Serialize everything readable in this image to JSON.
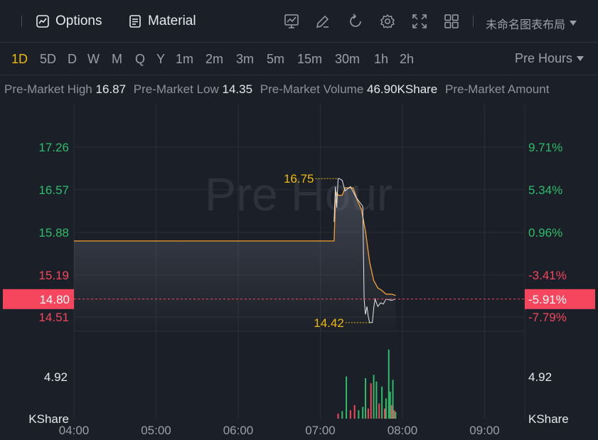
{
  "toolbar": {
    "options_label": "Options",
    "material_label": "Material",
    "layout_name": "未命名图表布局"
  },
  "timeframes": [
    "1D",
    "5D",
    "D",
    "W",
    "M",
    "Q",
    "Y",
    "1m",
    "2m",
    "3m",
    "5m",
    "15m",
    "30m",
    "1h",
    "2h"
  ],
  "active_timeframe": "1D",
  "session_select": "Pre Hours",
  "info": {
    "high_label": "Pre-Market High",
    "high_value": "16.87",
    "low_label": "Pre-Market Low",
    "low_value": "14.35",
    "volume_label": "Pre-Market Volume",
    "volume_value": "46.90KShare",
    "amount_label": "Pre-Market Amount"
  },
  "colors": {
    "accent": "#f0b90b",
    "up": "#2ebd6b",
    "down": "#f6465d",
    "price_line": "#f7a035"
  },
  "chart_data": {
    "type": "line",
    "watermark": "Pre Hour",
    "price_axis_left": [
      "17.26",
      "16.57",
      "15.88",
      "15.19",
      "14.51"
    ],
    "price_axis_right": [
      "9.71%",
      "5.34%",
      "0.96%",
      "-3.41%",
      "-7.79%"
    ],
    "current_price": "14.80",
    "current_change": "-5.91%",
    "max_label": "16.75",
    "min_label": "14.42",
    "volume_axis_left": "4.92",
    "volume_axis_right": "4.92",
    "volume_unit": "KShare",
    "x_ticks": [
      "04:00",
      "05:00",
      "06:00",
      "07:00",
      "08:00",
      "09:00"
    ],
    "ylim": [
      14.28,
      17.96
    ],
    "price_series": [
      [
        "04:00",
        15.74
      ],
      [
        "07:10",
        15.74
      ],
      [
        "07:11",
        16.35
      ],
      [
        "07:12",
        16.52
      ],
      [
        "07:13",
        16.48
      ],
      [
        "07:16",
        16.48
      ],
      [
        "07:18",
        16.6
      ],
      [
        "07:24",
        16.6
      ],
      [
        "07:27",
        16.4
      ],
      [
        "07:30",
        16.25
      ],
      [
        "07:33",
        15.9
      ],
      [
        "07:36",
        15.4
      ],
      [
        "07:39",
        15.1
      ],
      [
        "07:42",
        14.98
      ],
      [
        "07:45",
        14.94
      ],
      [
        "07:48",
        14.88
      ],
      [
        "07:52",
        14.88
      ],
      [
        "07:55",
        14.86
      ]
    ],
    "tick_series": [
      [
        "07:10",
        16.05
      ],
      [
        "07:11",
        16.62
      ],
      [
        "07:12",
        16.28
      ],
      [
        "07:13",
        16.75
      ],
      [
        "07:14",
        16.75
      ],
      [
        "07:16",
        16.72
      ],
      [
        "07:18",
        16.55
      ],
      [
        "07:22",
        16.62
      ],
      [
        "07:26",
        16.45
      ],
      [
        "07:31",
        16.3
      ],
      [
        "07:32",
        14.8
      ],
      [
        "07:33",
        14.55
      ],
      [
        "07:34",
        14.68
      ],
      [
        "07:35",
        14.52
      ],
      [
        "07:36",
        14.42
      ],
      [
        "07:38",
        14.42
      ],
      [
        "07:39",
        14.66
      ],
      [
        "07:40",
        14.8
      ],
      [
        "07:42",
        14.68
      ],
      [
        "07:44",
        14.74
      ],
      [
        "07:46",
        14.72
      ],
      [
        "07:48",
        14.8
      ],
      [
        "07:52",
        14.78
      ],
      [
        "07:55",
        14.8
      ]
    ],
    "volume_bars": [
      {
        "t": "07:13",
        "v": 0.3,
        "dir": "down"
      },
      {
        "t": "07:16",
        "v": 0.45,
        "dir": "up"
      },
      {
        "t": "07:19",
        "v": 2.5,
        "dir": "up"
      },
      {
        "t": "07:22",
        "v": 0.5,
        "dir": "down"
      },
      {
        "t": "07:25",
        "v": 0.8,
        "dir": "down"
      },
      {
        "t": "07:28",
        "v": 0.5,
        "dir": "up"
      },
      {
        "t": "07:31",
        "v": 0.7,
        "dir": "up"
      },
      {
        "t": "07:33",
        "v": 2.4,
        "dir": "up"
      },
      {
        "t": "07:35",
        "v": 0.6,
        "dir": "down"
      },
      {
        "t": "07:37",
        "v": 2.1,
        "dir": "down"
      },
      {
        "t": "07:39",
        "v": 2.6,
        "dir": "up"
      },
      {
        "t": "07:41",
        "v": 2.2,
        "dir": "up"
      },
      {
        "t": "07:43",
        "v": 0.9,
        "dir": "down"
      },
      {
        "t": "07:45",
        "v": 1.9,
        "dir": "up"
      },
      {
        "t": "07:47",
        "v": 0.6,
        "dir": "down"
      },
      {
        "t": "07:48",
        "v": 1.2,
        "dir": "up"
      },
      {
        "t": "07:50",
        "v": 4.1,
        "dir": "up"
      },
      {
        "t": "07:51",
        "v": 1.6,
        "dir": "up"
      },
      {
        "t": "07:52",
        "v": 0.8,
        "dir": "down"
      },
      {
        "t": "07:53",
        "v": 2.3,
        "dir": "up"
      },
      {
        "t": "07:54",
        "v": 0.5,
        "dir": "down"
      },
      {
        "t": "07:55",
        "v": 0.4,
        "dir": "up"
      }
    ],
    "vol_max": 4.92,
    "grid": true
  }
}
